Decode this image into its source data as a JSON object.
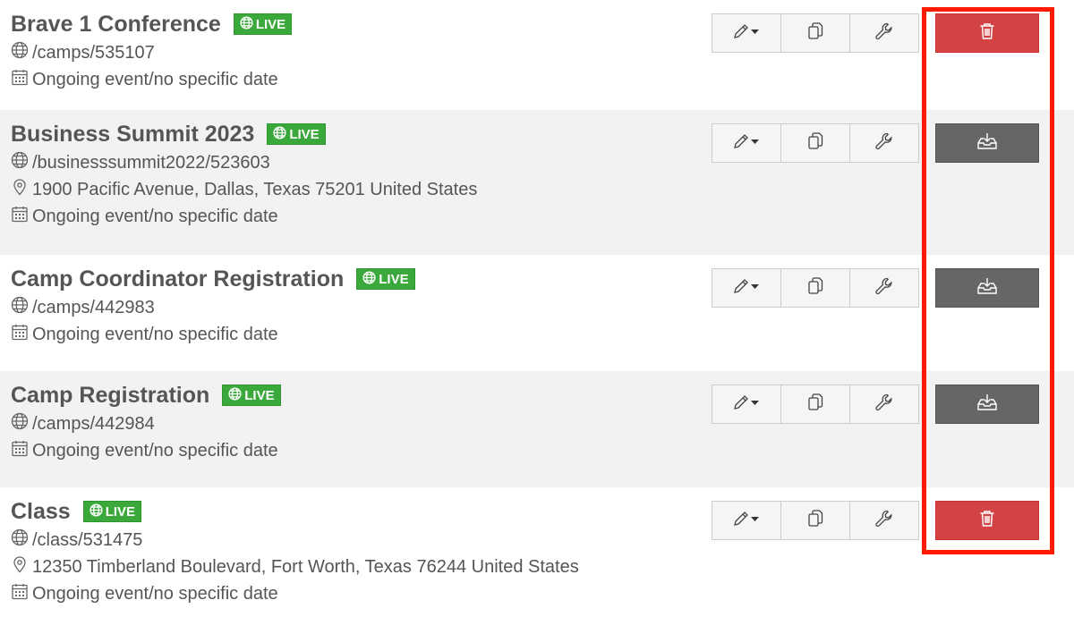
{
  "events": [
    {
      "title": "Brave 1 Conference",
      "status": "LIVE",
      "url": "/camps/535107",
      "address": null,
      "date": "Ongoing event/no specific date",
      "action": "delete",
      "height": 123
    },
    {
      "title": "Business Summit 2023",
      "status": "LIVE",
      "url": "/businesssummit2022/523603",
      "address": "1900 Pacific Avenue, Dallas, Texas 75201 United States",
      "date": "Ongoing event/no specific date",
      "action": "archive",
      "height": 162
    },
    {
      "title": "Camp Coordinator Registration",
      "status": "LIVE",
      "url": "/camps/442983",
      "address": null,
      "date": "Ongoing event/no specific date",
      "action": "archive",
      "height": 130
    },
    {
      "title": "Camp Registration",
      "status": "LIVE",
      "url": "/camps/442984",
      "address": null,
      "date": "Ongoing event/no specific date",
      "action": "archive",
      "height": 130
    },
    {
      "title": "Class",
      "status": "LIVE",
      "url": "/class/531475",
      "address": "12350 Timberland Boulevard, Fort Worth, Texas 76244 United States",
      "date": "Ongoing event/no specific date",
      "action": "delete",
      "height": 145
    }
  ],
  "colors": {
    "live": "#3aa83a",
    "delete": "#d34343",
    "archive": "#666666",
    "highlight": "#ff1a00"
  },
  "icons": {
    "edit": "pencil-icon",
    "copy": "copy-icon",
    "settings": "wrench-icon",
    "delete": "trash-icon",
    "archive": "inbox-download-icon"
  }
}
